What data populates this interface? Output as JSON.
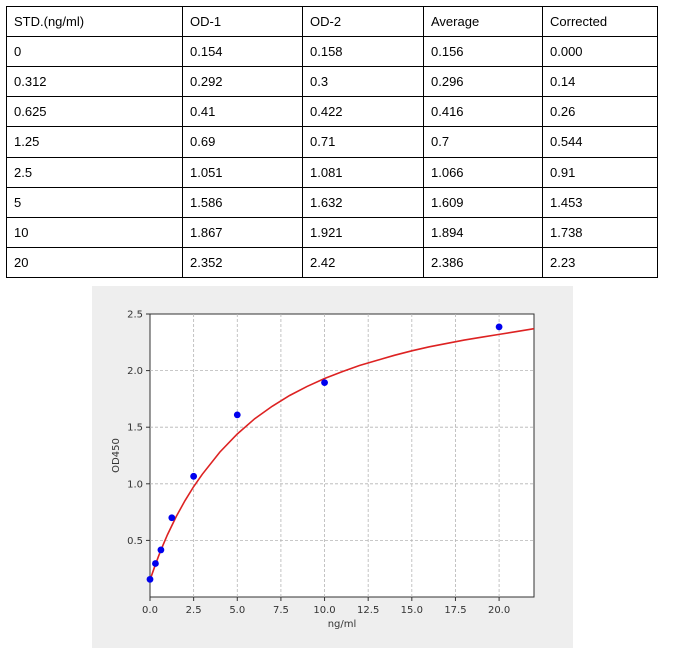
{
  "table": {
    "headers": [
      "STD.(ng/ml)",
      "OD-1",
      "OD-2",
      "Average",
      "Corrected"
    ],
    "rows": [
      [
        "0",
        "0.154",
        "0.158",
        "0.156",
        "0.000"
      ],
      [
        "0.312",
        "0.292",
        "0.3",
        "0.296",
        "0.14"
      ],
      [
        "0.625",
        "0.41",
        "0.422",
        "0.416",
        "0.26"
      ],
      [
        "1.25",
        "0.69",
        "0.71",
        "0.7",
        "0.544"
      ],
      [
        "2.5",
        "1.051",
        "1.081",
        "1.066",
        "0.91"
      ],
      [
        "5",
        "1.586",
        "1.632",
        "1.609",
        "1.453"
      ],
      [
        "10",
        "1.867",
        "1.921",
        "1.894",
        "1.738"
      ],
      [
        "20",
        "2.352",
        "2.42",
        "2.386",
        "2.23"
      ]
    ]
  },
  "chart_data": {
    "type": "scatter",
    "title": "",
    "xlabel": "ng/ml",
    "ylabel": "OD450",
    "xlim": [
      0,
      22
    ],
    "ylim": [
      0,
      2.5
    ],
    "xticks": [
      "0.0",
      "2.5",
      "5.0",
      "7.5",
      "10.0",
      "12.5",
      "15.0",
      "17.5",
      "20.0"
    ],
    "yticks": [
      "0.5",
      "1.0",
      "1.5",
      "2.0",
      "2.5"
    ],
    "grid": true,
    "points": {
      "x": [
        0,
        0.312,
        0.625,
        1.25,
        2.5,
        5,
        10,
        20
      ],
      "y": [
        0.156,
        0.296,
        0.416,
        0.7,
        1.066,
        1.609,
        1.894,
        2.386
      ],
      "color": "#0000ee"
    },
    "fit_curve": {
      "color": "#dd2222",
      "x": [
        0,
        0.25,
        0.5,
        0.75,
        1,
        1.5,
        2,
        2.5,
        3,
        4,
        5,
        6,
        7,
        8,
        9,
        10,
        11,
        12,
        13,
        14,
        15,
        16,
        17,
        18,
        19,
        20,
        21,
        22
      ],
      "y": [
        0.15,
        0.26,
        0.365,
        0.46,
        0.55,
        0.71,
        0.85,
        0.975,
        1.085,
        1.28,
        1.44,
        1.575,
        1.685,
        1.78,
        1.86,
        1.93,
        1.99,
        2.045,
        2.09,
        2.135,
        2.175,
        2.21,
        2.24,
        2.27,
        2.295,
        2.32,
        2.345,
        2.37
      ]
    }
  }
}
